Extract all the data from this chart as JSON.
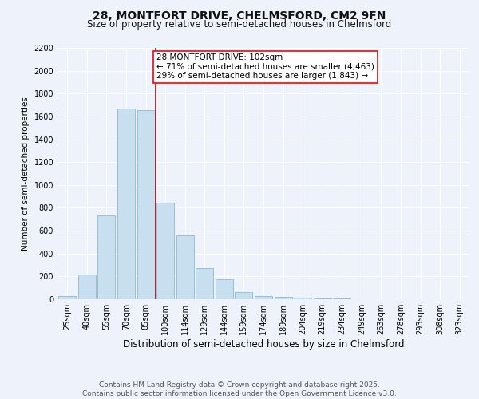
{
  "title1": "28, MONTFORT DRIVE, CHELMSFORD, CM2 9FN",
  "title2": "Size of property relative to semi-detached houses in Chelmsford",
  "xlabel": "Distribution of semi-detached houses by size in Chelmsford",
  "ylabel": "Number of semi-detached properties",
  "bar_labels": [
    "25sqm",
    "40sqm",
    "55sqm",
    "70sqm",
    "85sqm",
    "100sqm",
    "114sqm",
    "129sqm",
    "144sqm",
    "159sqm",
    "174sqm",
    "189sqm",
    "204sqm",
    "219sqm",
    "234sqm",
    "249sqm",
    "263sqm",
    "278sqm",
    "293sqm",
    "308sqm",
    "323sqm"
  ],
  "bar_values": [
    30,
    220,
    730,
    1670,
    1655,
    845,
    560,
    275,
    175,
    65,
    30,
    20,
    15,
    5,
    5,
    0,
    0,
    0,
    0,
    0,
    0
  ],
  "bar_color": "#c8dff0",
  "bar_edge_color": "#7ab0d0",
  "background_color": "#eef2fa",
  "grid_color": "#ffffff",
  "annotation_box_text": "28 MONTFORT DRIVE: 102sqm\n← 71% of semi-detached houses are smaller (4,463)\n29% of semi-detached houses are larger (1,843) →",
  "vline_color": "#cc0000",
  "ylim": [
    0,
    2200
  ],
  "yticks": [
    0,
    200,
    400,
    600,
    800,
    1000,
    1200,
    1400,
    1600,
    1800,
    2000,
    2200
  ],
  "footnote1": "Contains HM Land Registry data © Crown copyright and database right 2025.",
  "footnote2": "Contains public sector information licensed under the Open Government Licence v3.0.",
  "title1_fontsize": 10,
  "title2_fontsize": 8.5,
  "annotation_fontsize": 7.5,
  "axis_fontsize": 7,
  "xlabel_fontsize": 8.5,
  "ylabel_fontsize": 7.5,
  "footnote_fontsize": 6.5
}
